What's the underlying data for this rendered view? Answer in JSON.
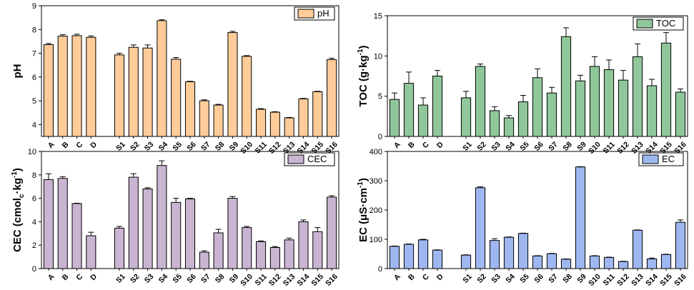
{
  "chart_data": [
    {
      "type": "bar",
      "panel": "top-left",
      "legend": "pH",
      "legend_position": "top-right",
      "ylabel": "pH",
      "ylim": [
        3.5,
        9
      ],
      "yticks": [
        "4",
        "5",
        "6",
        "7",
        "8",
        "9"
      ],
      "bar_color": "#FFCC99",
      "categories": [
        "A",
        "B",
        "C",
        "D",
        "S1",
        "S2",
        "S3",
        "S4",
        "S5",
        "S6",
        "S7",
        "S8",
        "S9",
        "S10",
        "S11",
        "S12",
        "S13",
        "S14",
        "S15",
        "S16"
      ],
      "values": [
        7.36,
        7.72,
        7.74,
        7.67,
        6.93,
        7.25,
        7.22,
        8.37,
        6.75,
        5.8,
        5.0,
        4.82,
        7.87,
        6.87,
        4.64,
        4.52,
        4.28,
        5.08,
        5.38,
        6.73
      ],
      "errors": [
        0.05,
        0.06,
        0.06,
        0.06,
        0.07,
        0.1,
        0.13,
        0.04,
        0.07,
        0.02,
        0.04,
        0.03,
        0.05,
        0.03,
        0.03,
        0.02,
        0.02,
        0.02,
        0.02,
        0.06
      ]
    },
    {
      "type": "bar",
      "panel": "top-right",
      "legend": "TOC",
      "legend_position": "top-right",
      "ylabel_parts": [
        "TOC (g·kg",
        "-1",
        ")"
      ],
      "ylim": [
        0,
        15
      ],
      "yticks": [
        "0",
        "5",
        "10",
        "15"
      ],
      "bar_color": "#8FC79A",
      "categories": [
        "A",
        "B",
        "C",
        "D",
        "S1",
        "S2",
        "S3",
        "S4",
        "S5",
        "S6",
        "S7",
        "S8",
        "S9",
        "S10",
        "S11",
        "S12",
        "S13",
        "S14",
        "S15",
        "S16"
      ],
      "values": [
        4.6,
        6.6,
        3.9,
        7.5,
        4.8,
        8.7,
        3.2,
        2.3,
        4.3,
        7.3,
        5.4,
        12.4,
        6.9,
        8.7,
        8.3,
        7.0,
        9.9,
        6.3,
        11.6,
        5.5
      ],
      "errors": [
        0.8,
        1.4,
        0.9,
        0.7,
        0.8,
        0.3,
        0.5,
        0.3,
        0.8,
        1.1,
        0.7,
        1.1,
        0.7,
        1.2,
        1.2,
        1.2,
        1.6,
        0.8,
        1.3,
        0.4
      ]
    },
    {
      "type": "bar",
      "panel": "bottom-left",
      "legend": "CEC",
      "legend_position": "top-right",
      "ylabel_parts": [
        "CEC (cmol",
        "c",
        "·kg",
        "-1",
        ")"
      ],
      "ylim": [
        0,
        10
      ],
      "yticks": [
        "0",
        "2",
        "4",
        "6",
        "8",
        "10"
      ],
      "bar_color": "#C9B4D1",
      "categories": [
        "A",
        "B",
        "C",
        "D",
        "S1",
        "S2",
        "S3",
        "S4",
        "S5",
        "S6",
        "S7",
        "S8",
        "S9",
        "S10",
        "S11",
        "S12",
        "S13",
        "S14",
        "S15",
        "S16"
      ],
      "values": [
        7.6,
        7.7,
        5.55,
        2.8,
        3.45,
        7.8,
        6.8,
        8.8,
        5.65,
        5.95,
        1.4,
        3.05,
        6.0,
        3.5,
        2.3,
        1.8,
        2.45,
        4.0,
        3.15,
        6.1
      ],
      "errors": [
        0.5,
        0.15,
        0.03,
        0.3,
        0.15,
        0.3,
        0.1,
        0.4,
        0.35,
        0.05,
        0.12,
        0.3,
        0.15,
        0.1,
        0.06,
        0.08,
        0.15,
        0.15,
        0.35,
        0.12
      ]
    },
    {
      "type": "bar",
      "panel": "bottom-right",
      "legend": "EC",
      "legend_position": "top-right",
      "ylabel_parts": [
        "EC (μS·cm",
        "-1",
        ")"
      ],
      "ylim": [
        0,
        400
      ],
      "yticks": [
        "0",
        "100",
        "200",
        "300",
        "400"
      ],
      "bar_color": "#9EB7F0",
      "categories": [
        "A",
        "B",
        "C",
        "D",
        "S1",
        "S2",
        "S3",
        "S4",
        "S5",
        "S6",
        "S7",
        "S8",
        "S9",
        "S10",
        "S11",
        "S12",
        "S13",
        "S14",
        "S15",
        "S16"
      ],
      "values": [
        76,
        83,
        98,
        63,
        46,
        276,
        96,
        107,
        120,
        43,
        51,
        32,
        347,
        43,
        38,
        24,
        131,
        33,
        48,
        158
      ],
      "errors": [
        1,
        1,
        2,
        1,
        1,
        3,
        6,
        1,
        1,
        1,
        1,
        1,
        1,
        1,
        1,
        1,
        1,
        3,
        1,
        8
      ]
    }
  ]
}
